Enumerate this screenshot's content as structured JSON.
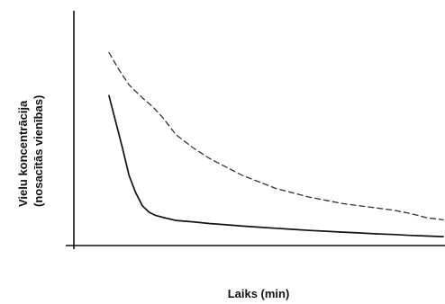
{
  "chart_data": {
    "type": "line",
    "title": "",
    "xlabel": "Laiks (min)",
    "ylabel_lines": [
      "Vielu koncentrācija",
      "(nosacītās vienības)"
    ],
    "grid": false,
    "legend": "none",
    "ticks": "none",
    "xlim": [
      0,
      100
    ],
    "ylim": [
      0,
      100
    ],
    "series": [
      {
        "line_style": "dashed",
        "color": "#333333",
        "x": [
          0,
          3,
          6,
          10,
          13,
          16,
          20,
          25,
          30,
          35,
          40,
          45,
          50,
          55,
          60,
          65,
          70,
          75,
          80,
          85,
          90,
          95,
          100
        ],
        "y": [
          89,
          81,
          74,
          68,
          64,
          59,
          51,
          45,
          40,
          36,
          32,
          29,
          26,
          24,
          22,
          20.5,
          19,
          18,
          17,
          16,
          14.5,
          12.5,
          11.5
        ]
      },
      {
        "line_style": "solid",
        "color": "#111111",
        "x": [
          0,
          2,
          4,
          6,
          8,
          10,
          12,
          14,
          17,
          20,
          25,
          30,
          35,
          40,
          45,
          50,
          55,
          60,
          65,
          70,
          75,
          80,
          85,
          90,
          95,
          100
        ],
        "y": [
          69,
          57,
          45,
          32,
          24,
          18,
          15,
          13.5,
          12.3,
          11.2,
          10.6,
          9.8,
          9.2,
          8.6,
          8.1,
          7.6,
          7.1,
          6.6,
          6.2,
          5.8,
          5.4,
          5.0,
          4.7,
          4.3,
          4.0,
          3.7
        ]
      }
    ]
  }
}
